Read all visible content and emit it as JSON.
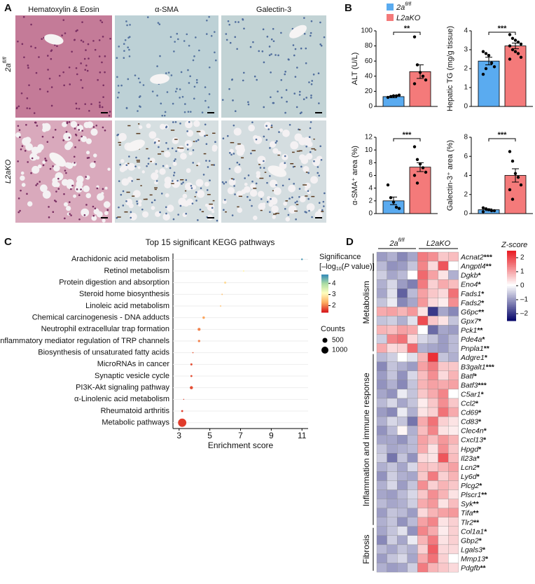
{
  "figure": {
    "panel_labels": [
      "A",
      "B",
      "C",
      "D"
    ]
  },
  "panel_a": {
    "columns": [
      "Hematoxylin & Eosin",
      "α-SMA",
      "Galectin-3"
    ],
    "rows": [
      {
        "text": "2a",
        "sup": "fl/fl"
      },
      {
        "text": "L2aKO"
      }
    ]
  },
  "legend": [
    {
      "text": "2a",
      "sup": "fl/fl",
      "color": "#5aabf0"
    },
    {
      "text": "L2aKO",
      "color": "#f47a7a"
    }
  ],
  "chart_data": [
    {
      "type": "bar",
      "y_label": "ALT (U/L)",
      "ylim": [
        0,
        100
      ],
      "yticks": [
        0,
        20,
        40,
        60,
        80,
        100
      ],
      "significance": "**",
      "series": [
        {
          "values": [
            13
          ],
          "errors": [
            1.5
          ],
          "points": [
            12,
            13,
            14,
            14,
            15
          ]
        },
        {
          "values": [
            46
          ],
          "errors": [
            9
          ],
          "points": [
            92,
            55,
            45,
            40,
            35,
            30
          ]
        }
      ]
    },
    {
      "type": "bar",
      "y_label": "Hepatic TG (mg/g tissue)",
      "ylim": [
        0,
        4
      ],
      "yticks": [
        0,
        1,
        2,
        3,
        4
      ],
      "significance": "***",
      "series": [
        {
          "values": [
            2.4
          ],
          "errors": [
            0.2
          ],
          "points": [
            2.9,
            2.8,
            2.7,
            2.3,
            2.1,
            1.7,
            2.0
          ]
        },
        {
          "values": [
            3.2
          ],
          "errors": [
            0.15
          ],
          "points": [
            3.8,
            3.6,
            3.5,
            3.4,
            3.3,
            3.2,
            3.0,
            2.9,
            2.8,
            2.6,
            2.5
          ]
        }
      ]
    },
    {
      "type": "bar",
      "y_label": "α-SMA⁺ area (%)",
      "ylim": [
        0,
        12
      ],
      "yticks": [
        0,
        2,
        4,
        6,
        8,
        10,
        12
      ],
      "significance": "***",
      "series": [
        {
          "values": [
            2.0
          ],
          "errors": [
            0.6
          ],
          "points": [
            4.5,
            2.5,
            1.8,
            1.0,
            0.8
          ]
        },
        {
          "values": [
            7.3
          ],
          "errors": [
            0.7
          ],
          "points": [
            10.5,
            8.5,
            7.8,
            7.2,
            6.5,
            6.0,
            4.8
          ]
        }
      ]
    },
    {
      "type": "bar",
      "y_label": "Galectin-3⁺ area (%)",
      "ylim": [
        0,
        8
      ],
      "yticks": [
        0,
        2,
        4,
        6,
        8
      ],
      "significance": "***",
      "series": [
        {
          "values": [
            0.4
          ],
          "errors": [
            0.1
          ],
          "points": [
            0.6,
            0.5,
            0.4,
            0.3,
            0.3,
            0.2
          ]
        },
        {
          "values": [
            4.0
          ],
          "errors": [
            0.7
          ],
          "points": [
            6.5,
            5.5,
            4.2,
            3.8,
            3.0,
            2.5,
            1.5
          ]
        }
      ]
    },
    {
      "type": "dot",
      "title": "Top 15 significant KEGG pathways",
      "x_label": "Enrichment score",
      "categories": [
        "Arachidonic acid metabolism",
        "Retinol metabolism",
        "Protein digestion and absorption",
        "Steroid home biosynthesis",
        "Linoleic acid metabolism",
        "Chemical carcinogenesis - DNA adducts",
        "Neutrophil extracellular trap formation",
        "Inflammatory mediator regulation of TRP channels",
        "Biosynthesis of unsaturated fatty acids",
        "MicroRNAs in cancer",
        "Synaptic vesicle cycle",
        "PI3K-Akt signaling pathway",
        "α-Linolenic acid metabolism",
        "Rheumatoid arthritis",
        "Metabolic pathways"
      ],
      "values": [
        11.0,
        7.2,
        6.0,
        5.8,
        5.7,
        4.6,
        4.3,
        4.3,
        3.9,
        3.8,
        3.8,
        3.8,
        3.3,
        3.2,
        3.2
      ],
      "significance": [
        4.6,
        3.0,
        2.7,
        2.5,
        2.5,
        2.2,
        2.0,
        2.0,
        1.8,
        1.7,
        1.7,
        1.7,
        1.6,
        1.6,
        1.6
      ],
      "counts": [
        60,
        50,
        90,
        40,
        40,
        120,
        170,
        110,
        30,
        90,
        80,
        200,
        20,
        80,
        1400
      ],
      "xlim": [
        2.6,
        11.4
      ],
      "xticks": [
        3,
        5,
        7,
        9,
        11
      ],
      "color_label": {
        "title": "Significance",
        "line2": [
          "[–log",
          "10",
          "(",
          "P",
          " value)]"
        ]
      },
      "colorscale": [
        "#d7191c",
        "#fdae61",
        "#ffffbf",
        "#abdda4",
        "#2b83ba"
      ],
      "clim": [
        1.4,
        4.8
      ],
      "cticks": [
        2,
        3,
        4
      ],
      "size_label": "Counts",
      "size_ticks": [
        500,
        1000
      ]
    },
    {
      "type": "heatmap",
      "color_label": "Z-score",
      "column_groups": [
        {
          "text": "2a",
          "sup": "fl/fl"
        },
        {
          "text": "L2aKO"
        }
      ],
      "colorscale": [
        "#08086b",
        "#ffffff",
        "#e8141c"
      ],
      "zlim": [
        -2.5,
        2.5
      ],
      "zticks": [
        2,
        1,
        0,
        {
          "value": -1,
          "label": "–1"
        },
        {
          "value": -2,
          "label": "–2"
        }
      ],
      "row_groups": [
        {
          "label": "Metabolism",
          "genes": [
            "Acnat2",
            "Angptl4",
            "Dgkb",
            "Eno4",
            "Fads1",
            "Fads2",
            "G6pc",
            "Gpx7",
            "Pck1",
            "Pde4a",
            "Pnpla1"
          ],
          "stars": [
            "***",
            "**",
            "*",
            "*",
            "*",
            "*",
            "**",
            "*",
            "**",
            "*",
            "**"
          ],
          "values": [
            [
              -1.0,
              -0.8,
              -1.2,
              -0.9,
              1.4,
              1.2,
              0.6,
              0.7
            ],
            [
              -0.7,
              -1.1,
              -1.0,
              -0.6,
              1.3,
              0.4,
              1.8,
              0.0
            ],
            [
              -0.5,
              -0.9,
              -0.7,
              0.0,
              1.6,
              1.0,
              0.3,
              -0.8
            ],
            [
              -0.8,
              -0.4,
              -1.0,
              -1.3,
              1.4,
              0.5,
              0.9,
              0.7
            ],
            [
              -0.9,
              -0.3,
              -1.6,
              -0.7,
              1.0,
              0.6,
              0.4,
              1.5
            ],
            [
              -0.6,
              -0.2,
              -1.2,
              -0.9,
              1.1,
              0.4,
              0.2,
              1.2
            ],
            [
              0.9,
              1.0,
              0.8,
              1.1,
              0.3,
              -2.0,
              -0.9,
              -1.2
            ],
            [
              -0.6,
              -0.5,
              -0.8,
              -0.3,
              1.9,
              0.6,
              0.3,
              -0.6
            ],
            [
              0.8,
              0.7,
              1.0,
              0.9,
              0.0,
              -1.5,
              -0.9,
              -1.0
            ],
            [
              -0.5,
              1.3,
              1.5,
              0.4,
              -0.4,
              -0.6,
              -1.0,
              -0.7
            ],
            [
              0.9,
              0.4,
              0.5,
              1.6,
              -0.8,
              -0.9,
              -1.0,
              -0.7
            ]
          ]
        },
        {
          "label": "Inflammation and immune response",
          "genes": [
            "Adgre1",
            "B3galt1",
            "Batf",
            "Batf3",
            "C5ar1",
            "Ccl2",
            "Cd69",
            "Cd83",
            "Clec4n",
            "Cxcl13",
            "Hpgd",
            "Il23a",
            "Lcn2",
            "Ly6d",
            "Plcg2",
            "Plscr1",
            "Syk",
            "Tifa",
            "Tlr2"
          ],
          "stars": [
            "*",
            "***",
            "*",
            "***",
            "*",
            "*",
            "*",
            "*",
            "*",
            "*",
            "*",
            "*",
            "*",
            "*",
            "*",
            "**",
            "**",
            "**",
            "**"
          ],
          "values": [
            [
              -0.7,
              -0.5,
              0.0,
              -0.3,
              0.8,
              2.2,
              -0.6,
              -0.8
            ],
            [
              -1.2,
              -0.6,
              -0.8,
              -1.0,
              1.0,
              1.4,
              0.6,
              0.6
            ],
            [
              -1.0,
              -0.6,
              -1.1,
              -0.4,
              0.7,
              1.2,
              0.4,
              0.8
            ],
            [
              -1.1,
              -0.8,
              -1.2,
              -0.6,
              0.8,
              1.0,
              0.9,
              1.0
            ],
            [
              -0.9,
              -1.1,
              -0.2,
              -0.6,
              0.6,
              0.9,
              1.3,
              0.0
            ],
            [
              -0.7,
              -0.4,
              -0.9,
              -0.6,
              0.2,
              0.6,
              1.2,
              0.6
            ],
            [
              -1.0,
              -1.2,
              -0.2,
              -0.8,
              0.3,
              0.5,
              1.5,
              0.9
            ],
            [
              -0.8,
              -0.4,
              -0.6,
              -1.4,
              0.9,
              1.5,
              0.5,
              0.3
            ],
            [
              -1.1,
              -0.7,
              0.1,
              -0.8,
              0.7,
              1.3,
              0.3,
              0.2
            ],
            [
              -0.9,
              -0.9,
              -1.1,
              -0.7,
              1.0,
              0.7,
              1.1,
              0.8
            ],
            [
              -0.6,
              -0.9,
              -0.8,
              -0.7,
              0.9,
              0.3,
              1.2,
              0.6
            ],
            [
              -0.5,
              -1.4,
              -0.6,
              -1.1,
              0.4,
              0.3,
              1.8,
              0.7
            ],
            [
              -0.8,
              -0.6,
              -0.9,
              -0.4,
              0.7,
              0.6,
              0.8,
              1.0
            ],
            [
              -1.1,
              -0.5,
              -0.8,
              -0.9,
              0.6,
              1.4,
              0.5,
              0.8
            ],
            [
              -0.8,
              -0.4,
              -1.0,
              -0.6,
              1.2,
              0.5,
              0.8,
              0.6
            ],
            [
              -0.9,
              -1.0,
              -0.7,
              -0.4,
              0.6,
              1.2,
              0.8,
              0.3
            ],
            [
              -0.7,
              -0.9,
              -0.8,
              -0.5,
              0.9,
              1.1,
              0.3,
              0.7
            ],
            [
              -1.0,
              -0.6,
              -0.7,
              -1.0,
              0.4,
              0.8,
              1.0,
              1.1
            ],
            [
              -0.8,
              -0.6,
              -1.1,
              -0.7,
              1.0,
              1.3,
              0.3,
              0.5
            ]
          ]
        },
        {
          "label": "Fibrosis",
          "genes": [
            "Col1a1",
            "Gbp2",
            "Lgals3",
            "Mmp13",
            "Pdgfb"
          ],
          "stars": [
            "*",
            "*",
            "*",
            "*",
            "**"
          ],
          "values": [
            [
              -0.9,
              -0.6,
              -0.3,
              -1.1,
              1.3,
              0.9,
              0.2,
              0.5
            ],
            [
              -1.2,
              -0.5,
              -0.9,
              -0.2,
              0.8,
              1.4,
              0.3,
              0.5
            ],
            [
              -0.7,
              -0.9,
              -0.6,
              -0.8,
              0.5,
              1.7,
              0.4,
              0.4
            ],
            [
              -1.0,
              -0.6,
              -0.4,
              -0.9,
              0.9,
              1.5,
              0.5,
              0.0
            ],
            [
              -0.8,
              -1.0,
              -0.9,
              -0.5,
              1.4,
              0.8,
              0.6,
              0.4
            ]
          ]
        }
      ]
    }
  ]
}
